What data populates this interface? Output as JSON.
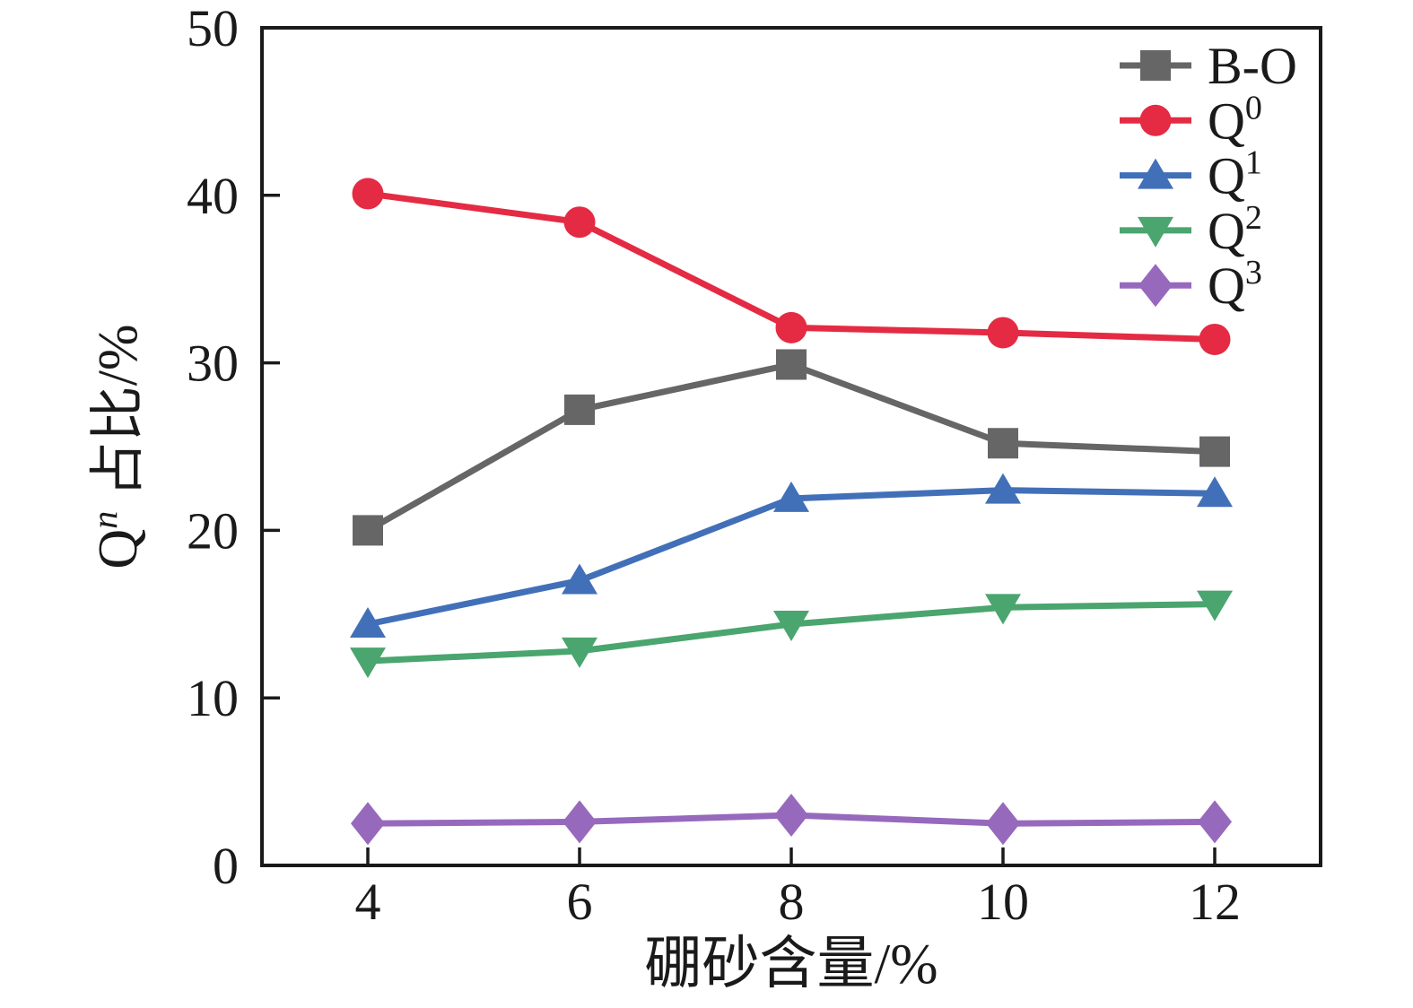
{
  "figure": {
    "ylabel_parts": {
      "base": "Q",
      "sup": "n",
      "rest": " 占比/%"
    }
  },
  "chart_data": {
    "type": "line",
    "title": "",
    "xlabel": "硼砂含量/%",
    "ylabel": "Q^n 占比/%",
    "x": [
      4,
      6,
      8,
      10,
      12
    ],
    "xlim": [
      3,
      13
    ],
    "ylim": [
      0,
      50
    ],
    "xticks": [
      4,
      6,
      8,
      10,
      12
    ],
    "yticks": [
      0,
      10,
      20,
      30,
      40,
      50
    ],
    "grid": false,
    "legend_position": "top-right-inside",
    "series": [
      {
        "name": "B-O",
        "label_base": "B-O",
        "label_sup": "",
        "color": "#666666",
        "marker": "square",
        "values": [
          20.0,
          27.2,
          29.9,
          25.2,
          24.7
        ]
      },
      {
        "name": "Q0",
        "label_base": "Q",
        "label_sup": "0",
        "color": "#e42b43",
        "marker": "circle",
        "values": [
          40.1,
          38.4,
          32.1,
          31.8,
          31.4
        ]
      },
      {
        "name": "Q1",
        "label_base": "Q",
        "label_sup": "1",
        "color": "#4270b8",
        "marker": "triangle-up",
        "values": [
          14.4,
          17.0,
          21.9,
          22.4,
          22.2
        ]
      },
      {
        "name": "Q2",
        "label_base": "Q",
        "label_sup": "2",
        "color": "#4aa56e",
        "marker": "triangle-down",
        "values": [
          12.2,
          12.8,
          14.4,
          15.4,
          15.6
        ]
      },
      {
        "name": "Q3",
        "label_base": "Q",
        "label_sup": "3",
        "color": "#9769bd",
        "marker": "diamond",
        "values": [
          2.5,
          2.6,
          3.0,
          2.5,
          2.6
        ]
      }
    ],
    "axis_color": "#1a1a1a"
  }
}
